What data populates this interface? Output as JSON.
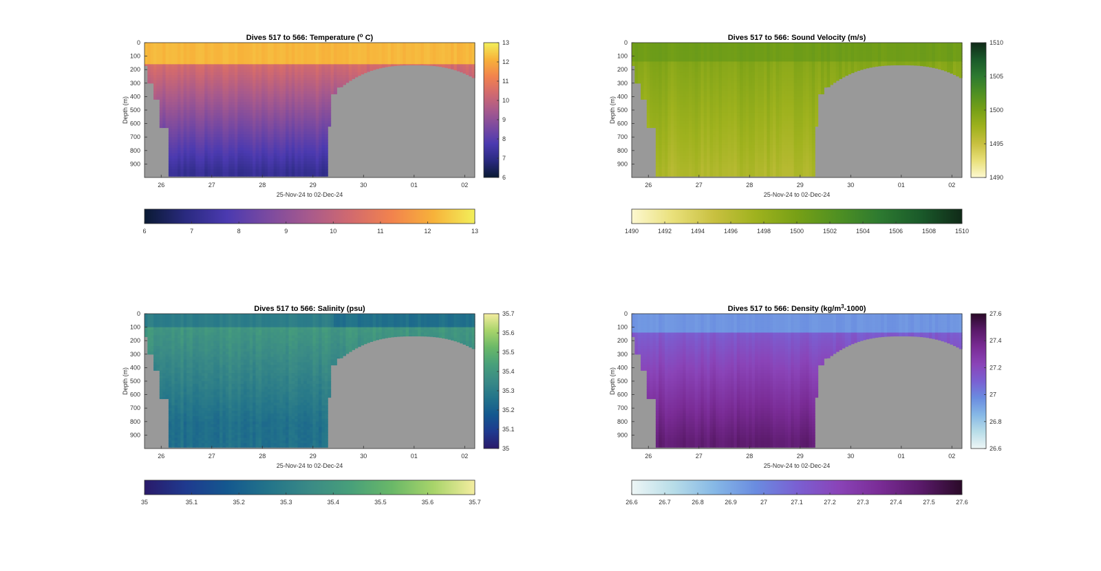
{
  "figure": {
    "background": "#ffffff",
    "mask_color": "#999999"
  },
  "chart_data": [
    {
      "id": "temperature",
      "type": "heatmap",
      "title": "Dives 517 to 566: Temperature (° C)",
      "title_main": "Dives 517 to 566: Temperature (",
      "title_sup": "o",
      "title_tail": " C)",
      "xlabel": "25-Nov-24 to 02-Dec-24",
      "ylabel": "Depth (m)",
      "x_ticks": [
        "26",
        "27",
        "28",
        "29",
        "30",
        "01",
        "02"
      ],
      "y_ticks": [
        0,
        100,
        200,
        300,
        400,
        500,
        600,
        700,
        800,
        900
      ],
      "ylim": [
        0,
        1000
      ],
      "xlim_days": [
        25.67,
        32.2
      ],
      "clim": [
        6,
        13
      ],
      "right_cbar_ticks": [
        "6",
        "7",
        "8",
        "9",
        "10",
        "11",
        "12",
        "13"
      ],
      "bottom_cbar_ticks": [
        "6",
        "7",
        "8",
        "9",
        "10",
        "11",
        "12",
        "13"
      ],
      "colormap": [
        "#0a1a33",
        "#2a2a80",
        "#4b3ab0",
        "#7b4aa0",
        "#a85a8c",
        "#d26a6e",
        "#f2834d",
        "#f7b23a",
        "#f2ef5a"
      ],
      "surface_value": 12.2,
      "deep_value": 7.2,
      "surface_layer_depth": 160,
      "grid": false
    },
    {
      "id": "sound_velocity",
      "type": "heatmap",
      "title": "Dives 517 to 566: Sound Velocity (m/s)",
      "title_main": "Dives 517 to 566: Sound Velocity (m/s)",
      "title_sup": "",
      "title_tail": "",
      "xlabel": "25-Nov-24 to 02-Dec-24",
      "ylabel": "Depth (m)",
      "x_ticks": [
        "26",
        "27",
        "28",
        "29",
        "30",
        "01",
        "02"
      ],
      "y_ticks": [
        0,
        100,
        200,
        300,
        400,
        500,
        600,
        700,
        800,
        900
      ],
      "ylim": [
        0,
        1000
      ],
      "xlim_days": [
        25.67,
        32.2
      ],
      "clim": [
        1490,
        1510
      ],
      "right_cbar_ticks": [
        "1490",
        "1495",
        "1500",
        "1505",
        "1510"
      ],
      "right_cbar_tick_values": [
        1490,
        1495,
        1500,
        1505,
        1510
      ],
      "bottom_cbar_ticks": [
        "1490",
        "1492",
        "1494",
        "1496",
        "1498",
        "1500",
        "1502",
        "1504",
        "1506",
        "1508",
        "1510"
      ],
      "colormap": [
        "#fdf8d0",
        "#e9e07a",
        "#c8c040",
        "#9fb21e",
        "#77a016",
        "#4f9022",
        "#2d7a30",
        "#1a5a2a",
        "#102a18"
      ],
      "surface_value": 1500.5,
      "deep_value": 1496.5,
      "surface_layer_depth": 150,
      "grid": false
    },
    {
      "id": "salinity",
      "type": "heatmap",
      "title": "Dives 517 to 566: Salinity (psu)",
      "title_main": "Dives 517 to 566: Salinity (psu)",
      "title_sup": "",
      "title_tail": "",
      "xlabel": "25-Nov-24 to 02-Dec-24",
      "ylabel": "Depth (m)",
      "x_ticks": [
        "26",
        "27",
        "28",
        "29",
        "30",
        "01",
        "02"
      ],
      "y_ticks": [
        0,
        100,
        200,
        300,
        400,
        500,
        600,
        700,
        800,
        900
      ],
      "ylim": [
        0,
        1000
      ],
      "xlim_days": [
        25.67,
        32.2
      ],
      "clim": [
        35,
        35.7
      ],
      "right_cbar_ticks": [
        "35",
        "35.1",
        "35.2",
        "35.3",
        "35.4",
        "35.5",
        "35.6",
        "35.7"
      ],
      "bottom_cbar_ticks": [
        "35",
        "35.1",
        "35.2",
        "35.3",
        "35.4",
        "35.5",
        "35.6",
        "35.7"
      ],
      "colormap": [
        "#2a1a6a",
        "#1f3a8f",
        "#14588f",
        "#23748a",
        "#3a8a86",
        "#48a07a",
        "#6ab868",
        "#a8d46a",
        "#f4eda0"
      ],
      "surface_value": 35.3,
      "deep_value": 35.25,
      "mid_value": 35.4,
      "surface_layer_depth": 110,
      "grid": false
    },
    {
      "id": "density",
      "type": "heatmap",
      "title": "Dives 517 to 566: Density (kg/m³-1000)",
      "title_main": "Dives 517 to 566: Density (kg/m",
      "title_sup": "3",
      "title_tail": "-1000)",
      "xlabel": "25-Nov-24 to 02-Dec-24",
      "ylabel": "Depth (m)",
      "x_ticks": [
        "26",
        "27",
        "28",
        "29",
        "30",
        "01",
        "02"
      ],
      "y_ticks": [
        0,
        100,
        200,
        300,
        400,
        500,
        600,
        700,
        800,
        900
      ],
      "ylim": [
        0,
        1000
      ],
      "xlim_days": [
        25.67,
        32.2
      ],
      "clim": [
        26.6,
        27.6
      ],
      "right_cbar_ticks": [
        "26.6",
        "26.8",
        "27",
        "27.2",
        "27.4",
        "27.6"
      ],
      "right_cbar_tick_values": [
        26.6,
        26.8,
        27.0,
        27.2,
        27.4,
        27.6
      ],
      "bottom_cbar_ticks": [
        "26.6",
        "26.7",
        "26.8",
        "26.9",
        "27",
        "27.1",
        "27.2",
        "27.3",
        "27.4",
        "27.5",
        "27.6"
      ],
      "colormap": [
        "#eef6f6",
        "#b8dde8",
        "#86b8e6",
        "#6a8ce0",
        "#7a60d2",
        "#8a44b8",
        "#7a2c96",
        "#5a1a6a",
        "#2a0a28"
      ],
      "surface_value": 26.95,
      "deep_value": 27.45,
      "surface_layer_depth": 150,
      "grid": false
    }
  ]
}
